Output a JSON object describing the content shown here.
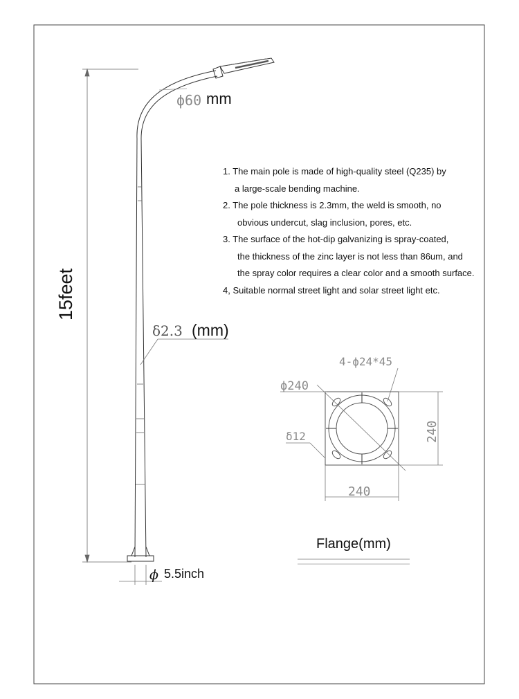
{
  "pole": {
    "arm_diameter_symbol": "ϕ60",
    "arm_diameter_unit": "mm",
    "height_label": "15feet",
    "thickness_symbol": "δ2.3",
    "thickness_unit": "(mm)",
    "base_symbol": "ϕ",
    "base_label": "5.5inch"
  },
  "notes": [
    {
      "first": "1. The main pole is made of high-quality steel (Q235) by",
      "rest": [
        "a large-scale bending machine."
      ]
    },
    {
      "first": "2. The pole thickness is 2.3mm, the weld is smooth, no",
      "rest": [
        "obvious undercut, slag inclusion, pores, etc."
      ]
    },
    {
      "first": "3. The surface of the hot-dip galvanizing is spray-coated,",
      "rest": [
        "the thickness of the zinc layer is not less than 86um, and",
        "the spray color requires a clear color and a smooth surface."
      ]
    },
    {
      "first": "4, Suitable normal street light and solar street light etc.",
      "rest": []
    }
  ],
  "flange": {
    "holes_label": "4-ϕ24*45",
    "circle_label": "ϕ240",
    "plate_thickness_label": "δ12",
    "width_label": "240",
    "height_label": "240",
    "title": "Flange(mm)"
  },
  "colors": {
    "line": "#333333",
    "dim": "#777777",
    "text": "#111111"
  }
}
